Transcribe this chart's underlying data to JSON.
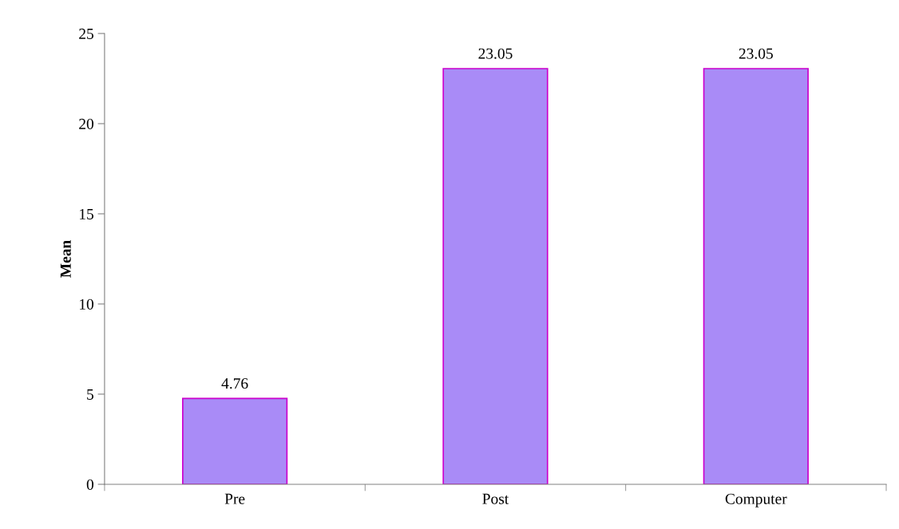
{
  "chart_data": {
    "type": "bar",
    "ylabel": "Mean",
    "categories": [
      "Pre",
      "Post",
      "Computer"
    ],
    "values": [
      4.76,
      23.05,
      23.05
    ],
    "color": "#a98bf7",
    "ylim": [
      0,
      25
    ],
    "yticks": [
      0,
      5,
      10,
      15,
      20,
      25
    ],
    "data_labels": true,
    "grid": false,
    "legend": false
  }
}
